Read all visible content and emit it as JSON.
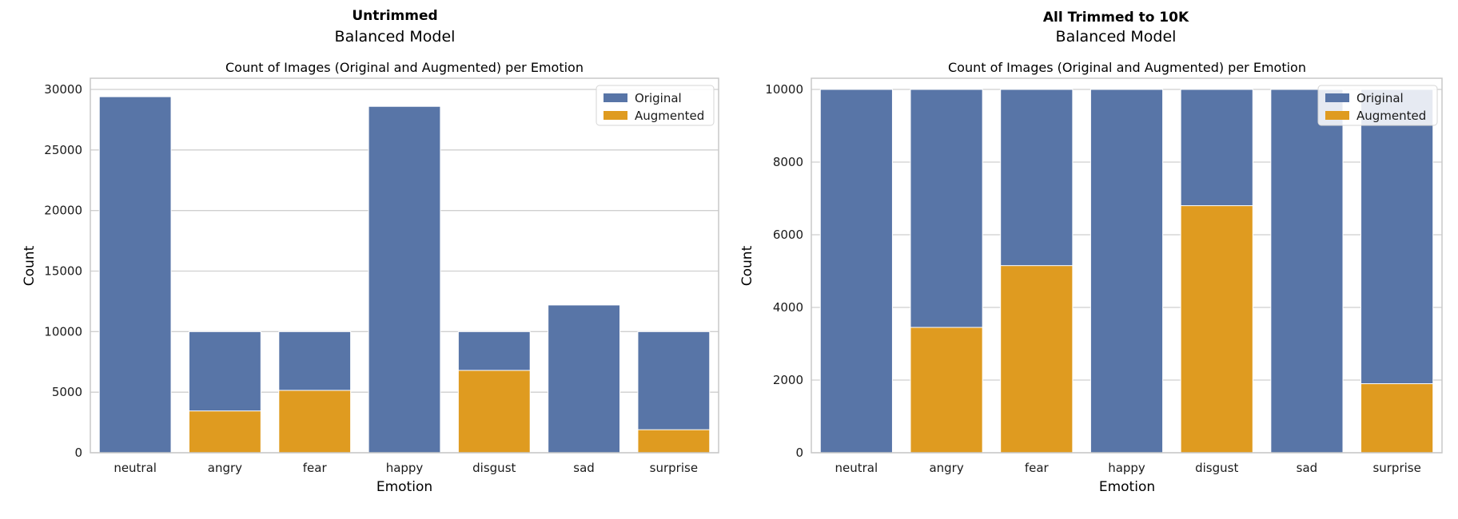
{
  "colors": {
    "original": "#5875a7",
    "augmented": "#df9b20",
    "grid": "#cfcfcf",
    "frame": "#c8c8c8",
    "text": "#1a1a1a"
  },
  "charts": [
    {
      "heading": "Untrimmed",
      "subheading": "Balanced Model",
      "title": "Count of Images (Original and Augmented) per Emotion",
      "xlabel": "Emotion",
      "ylabel": "Count",
      "legend": [
        "Original",
        "Augmented"
      ]
    },
    {
      "heading": "All Trimmed to 10K",
      "subheading": "Balanced Model",
      "title": "Count of Images (Original and Augmented) per Emotion",
      "xlabel": "Emotion",
      "ylabel": "Count",
      "legend": [
        "Original",
        "Augmented"
      ]
    }
  ],
  "chart_data": [
    {
      "type": "bar",
      "stacked": "overlay",
      "title": "Count of Images (Original and Augmented) per Emotion",
      "xlabel": "Emotion",
      "ylabel": "Count",
      "categories": [
        "neutral",
        "angry",
        "fear",
        "happy",
        "disgust",
        "sad",
        "surprise"
      ],
      "series": [
        {
          "name": "Original",
          "values": [
            29400,
            10000,
            10000,
            28600,
            10000,
            12200,
            10000
          ]
        },
        {
          "name": "Augmented",
          "values": [
            0,
            3450,
            5150,
            0,
            6800,
            0,
            1900
          ]
        }
      ],
      "yticks": [
        0,
        5000,
        10000,
        15000,
        20000,
        25000,
        30000
      ],
      "ylim": [
        0,
        30000
      ],
      "grid": true,
      "legend_position": "top-right"
    },
    {
      "type": "bar",
      "stacked": "overlay",
      "title": "Count of Images (Original and Augmented) per Emotion",
      "xlabel": "Emotion",
      "ylabel": "Count",
      "categories": [
        "neutral",
        "angry",
        "fear",
        "happy",
        "disgust",
        "sad",
        "surprise"
      ],
      "series": [
        {
          "name": "Original",
          "values": [
            10000,
            10000,
            10000,
            10000,
            10000,
            10000,
            10000
          ]
        },
        {
          "name": "Augmented",
          "values": [
            0,
            3450,
            5150,
            0,
            6800,
            0,
            1900
          ]
        }
      ],
      "yticks": [
        0,
        2000,
        4000,
        6000,
        8000,
        10000
      ],
      "ylim": [
        0,
        10000
      ],
      "grid": true,
      "legend_position": "top-right"
    }
  ]
}
